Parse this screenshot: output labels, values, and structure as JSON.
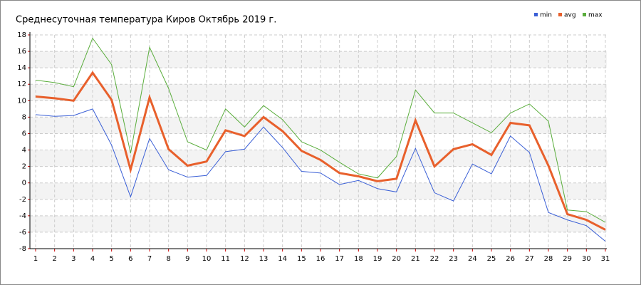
{
  "chart_data": {
    "type": "line",
    "title": "Среднесуточная температура Киров  Октябрь 2019 г.",
    "x": [
      1,
      2,
      3,
      4,
      5,
      6,
      7,
      8,
      9,
      10,
      11,
      12,
      13,
      14,
      15,
      16,
      17,
      18,
      19,
      20,
      21,
      22,
      23,
      24,
      25,
      26,
      27,
      28,
      29,
      30,
      31
    ],
    "xlim": [
      1,
      31
    ],
    "xticks": [
      1,
      2,
      3,
      4,
      5,
      6,
      7,
      8,
      9,
      10,
      11,
      12,
      13,
      14,
      15,
      16,
      17,
      18,
      19,
      20,
      21,
      22,
      23,
      24,
      25,
      26,
      27,
      28,
      29,
      30,
      31
    ],
    "ylim": [
      -8,
      18
    ],
    "yticks": [
      -8,
      -6,
      -4,
      -2,
      0,
      2,
      4,
      6,
      8,
      10,
      12,
      14,
      16,
      18
    ],
    "grid": true,
    "legend": "top-right",
    "series": [
      {
        "name": "min",
        "color": "#3a5fd6",
        "values": [
          8.3,
          8.1,
          8.2,
          9.0,
          4.6,
          -1.7,
          5.4,
          1.6,
          0.7,
          0.9,
          3.8,
          4.1,
          6.8,
          4.3,
          1.4,
          1.2,
          -0.2,
          0.3,
          -0.7,
          -1.1,
          4.2,
          -1.2,
          -2.2,
          2.3,
          1.1,
          5.7,
          3.7,
          -3.6,
          -4.5,
          -5.2,
          -7.1
        ]
      },
      {
        "name": "avg",
        "color": "#e8602c",
        "values": [
          10.5,
          10.3,
          10.0,
          13.4,
          10.1,
          1.6,
          10.4,
          4.1,
          2.1,
          2.6,
          6.4,
          5.7,
          8.0,
          6.3,
          3.9,
          2.8,
          1.2,
          0.8,
          0.2,
          0.5,
          7.6,
          2.0,
          4.1,
          4.7,
          3.4,
          7.3,
          7.0,
          2.1,
          -3.8,
          -4.5,
          -5.7
        ]
      },
      {
        "name": "max",
        "color": "#5aad3c",
        "values": [
          12.5,
          12.2,
          11.7,
          17.6,
          14.4,
          3.6,
          16.5,
          11.5,
          5.0,
          4.0,
          9.0,
          6.8,
          9.4,
          7.7,
          5.0,
          4.0,
          2.5,
          1.1,
          0.6,
          3.2,
          11.3,
          8.5,
          8.5,
          7.3,
          6.1,
          8.5,
          9.6,
          7.5,
          -3.3,
          -3.5,
          -4.8
        ]
      }
    ]
  }
}
